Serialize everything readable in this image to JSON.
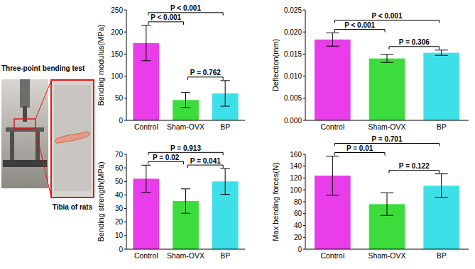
{
  "photo": {
    "title": "Three-point bending test",
    "inset_label": "Tibia of rats"
  },
  "chart_data": [
    {
      "type": "bar",
      "y_label": "Bending modulus(MPa)",
      "categories": [
        "Control",
        "Sham-OVX",
        "BP"
      ],
      "values": [
        175,
        46,
        61
      ],
      "errors": [
        40,
        17,
        29
      ],
      "colors": [
        "#e83de8",
        "#3ddc3d",
        "#3de0e8"
      ],
      "ylim": [
        0,
        250
      ],
      "yticks": [
        0,
        50,
        100,
        150,
        200,
        250
      ],
      "comparisons": [
        {
          "groups": [
            0,
            2
          ],
          "label": "P < 0.001"
        },
        {
          "groups": [
            0,
            1
          ],
          "label": "P < 0.001"
        },
        {
          "groups": [
            1,
            2
          ],
          "label": "P = 0.762"
        }
      ]
    },
    {
      "type": "bar",
      "y_label": "Deflection(mm)",
      "categories": [
        "Control",
        "Sham-OVX",
        "BP"
      ],
      "values": [
        0.0183,
        0.014,
        0.0153
      ],
      "errors": [
        0.0015,
        0.0009,
        0.0006
      ],
      "colors": [
        "#e83de8",
        "#3ddc3d",
        "#3de0e8"
      ],
      "ylim": [
        0,
        0.025
      ],
      "yticks": [
        {
          "value": 0,
          "label": "0.000"
        },
        {
          "value": 0.005,
          "label": "0.005"
        },
        {
          "value": 0.01,
          "label": "0.010"
        },
        {
          "value": 0.015,
          "label": "0.015"
        },
        {
          "value": 0.02,
          "label": "0.020"
        },
        {
          "value": 0.025,
          "label": "0.025"
        }
      ],
      "comparisons": [
        {
          "groups": [
            0,
            2
          ],
          "label": "P < 0.001"
        },
        {
          "groups": [
            0,
            1
          ],
          "label": "P < 0.001"
        },
        {
          "groups": [
            1,
            2
          ],
          "label": "P = 0.306"
        }
      ]
    },
    {
      "type": "bar",
      "y_label": "Bending strength(MPa)",
      "categories": [
        "Control",
        "Sham-OVX",
        "BP"
      ],
      "values": [
        52,
        35.5,
        50
      ],
      "errors": [
        10,
        9,
        9.5
      ],
      "colors": [
        "#e83de8",
        "#3ddc3d",
        "#3de0e8"
      ],
      "ylim": [
        0,
        70
      ],
      "yticks": [
        0,
        10,
        20,
        30,
        40,
        50,
        60,
        70
      ],
      "comparisons": [
        {
          "groups": [
            0,
            2
          ],
          "label": "P = 0.913"
        },
        {
          "groups": [
            0,
            1
          ],
          "label": "P = 0.02"
        },
        {
          "groups": [
            1,
            2
          ],
          "label": "P = 0.041"
        }
      ]
    },
    {
      "type": "bar",
      "y_label": "Max bending forces(N)",
      "categories": [
        "Control",
        "Sham-OVX",
        "BP"
      ],
      "values": [
        124,
        76,
        107
      ],
      "errors": [
        33,
        19,
        20
      ],
      "colors": [
        "#e83de8",
        "#3ddc3d",
        "#3de0e8"
      ],
      "ylim": [
        0,
        160
      ],
      "yticks": [
        0,
        20,
        40,
        60,
        80,
        100,
        120,
        140,
        160
      ],
      "comparisons": [
        {
          "groups": [
            0,
            1
          ],
          "label": "P = 0.01"
        },
        {
          "groups": [
            0,
            2
          ],
          "label": "P = 0.701"
        },
        {
          "groups": [
            1,
            2
          ],
          "label": "P = 0.122"
        }
      ]
    }
  ]
}
